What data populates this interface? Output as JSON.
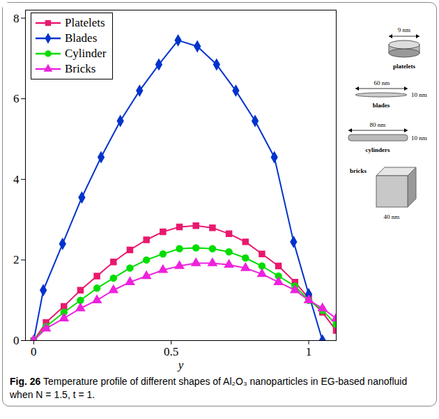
{
  "chart_data": {
    "type": "line",
    "x_label": "y",
    "caption": "Fig. 26 Temperature profile of different shapes of Al₂O₃ nanoparticles in EG-based nanofluid when N = 1.5, t = 1.",
    "xlim": [
      -0.03,
      1.1
    ],
    "xticks": [
      0,
      0.5,
      1
    ],
    "ylim": [
      0,
      8.2
    ],
    "yticks": [
      0,
      2,
      4,
      6,
      8
    ],
    "grid": false,
    "legend": "top-left",
    "series": [
      {
        "name": "Platelets",
        "color": "#e8196e",
        "marker": "square",
        "x": [
          0,
          0.045,
          0.11,
          0.17,
          0.23,
          0.29,
          0.35,
          0.41,
          0.47,
          0.53,
          0.59,
          0.65,
          0.71,
          0.77,
          0.83,
          0.89,
          0.95,
          1.0,
          1.05,
          1.1
        ],
        "values": [
          0,
          0.45,
          0.85,
          1.25,
          1.6,
          1.95,
          2.25,
          2.5,
          2.7,
          2.82,
          2.85,
          2.8,
          2.65,
          2.45,
          2.15,
          1.85,
          1.45,
          1.05,
          0.7,
          0.25
        ]
      },
      {
        "name": "Blades",
        "color": "#0033cc",
        "marker": "diamond",
        "x": [
          0,
          0.035,
          0.105,
          0.175,
          0.245,
          0.315,
          0.385,
          0.455,
          0.525,
          0.595,
          0.665,
          0.735,
          0.805,
          0.875,
          0.945,
          1.0,
          1.05
        ],
        "values": [
          0,
          1.25,
          2.4,
          3.55,
          4.55,
          5.45,
          6.2,
          6.85,
          7.45,
          7.3,
          6.85,
          6.2,
          5.45,
          4.55,
          2.45,
          1.15,
          0
        ]
      },
      {
        "name": "Cylinder",
        "color": "#00dd00",
        "marker": "circle",
        "x": [
          0,
          0.045,
          0.11,
          0.17,
          0.23,
          0.29,
          0.35,
          0.41,
          0.47,
          0.53,
          0.59,
          0.65,
          0.71,
          0.77,
          0.83,
          0.89,
          0.95,
          1.0,
          1.05,
          1.1
        ],
        "values": [
          0,
          0.35,
          0.7,
          1.0,
          1.3,
          1.55,
          1.8,
          2.0,
          2.15,
          2.28,
          2.3,
          2.28,
          2.2,
          2.05,
          1.85,
          1.6,
          1.35,
          1.0,
          0.75,
          0.4
        ]
      },
      {
        "name": "Bricks",
        "color": "#ee22dd",
        "marker": "triangle",
        "x": [
          0,
          0.045,
          0.11,
          0.17,
          0.23,
          0.29,
          0.35,
          0.41,
          0.47,
          0.53,
          0.59,
          0.65,
          0.71,
          0.77,
          0.83,
          0.89,
          0.95,
          1.0,
          1.05,
          1.1
        ],
        "values": [
          0,
          0.3,
          0.55,
          0.8,
          1.0,
          1.25,
          1.45,
          1.6,
          1.75,
          1.85,
          1.92,
          1.92,
          1.88,
          1.8,
          1.65,
          1.45,
          1.25,
          1.0,
          0.8,
          0.55
        ]
      }
    ],
    "annotations": [
      {
        "name": "platelets",
        "dims": [
          "9 nm"
        ]
      },
      {
        "name": "blades",
        "dims": [
          "60 nm",
          "10 nm"
        ]
      },
      {
        "name": "cylinders",
        "dims": [
          "80 nm",
          "10 nm"
        ]
      },
      {
        "name": "bricks",
        "dims": [
          "40 nm"
        ]
      }
    ]
  }
}
